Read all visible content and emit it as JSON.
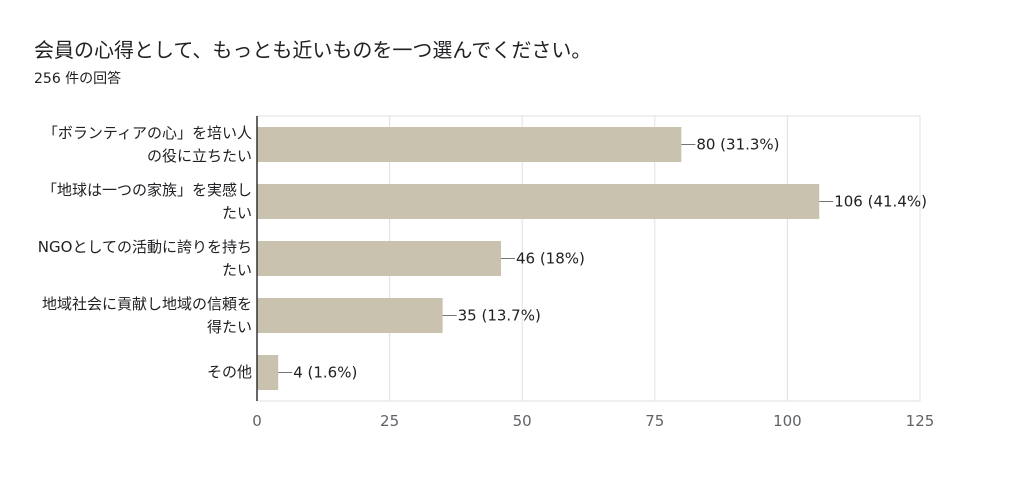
{
  "header": {
    "title": "会員の心得として、もっとも近いものを一つ選んでください。",
    "subtitle": "256 件の回答"
  },
  "colors": {
    "bar": "#c9c2ae",
    "grid": "#e0e0e0",
    "axis": "#333333",
    "text": "#202124"
  },
  "chart_data": {
    "type": "bar",
    "orientation": "horizontal",
    "title": "会員の心得として、もっとも近いものを一つ選んでください。",
    "subtitle": "256 件の回答",
    "categories": [
      [
        "「ボランティアの心」を培い人",
        "の役に立ちたい"
      ],
      [
        "「地球は一つの家族」を実感し",
        "たい"
      ],
      [
        "NGOとしての活動に誇りを持ち",
        "たい"
      ],
      [
        "地域社会に貢献し地域の信頼を",
        "得たい"
      ],
      [
        "その他"
      ]
    ],
    "values": [
      80,
      106,
      46,
      35,
      4
    ],
    "data_labels": [
      "80 (31.3%)",
      "106 (41.4%)",
      "46 (18%)",
      "35 (13.7%)",
      "4 (1.6%)"
    ],
    "xlim": [
      0,
      125
    ],
    "xticks": [
      0,
      25,
      50,
      75,
      100,
      125
    ],
    "xtick_labels": [
      "0",
      "25",
      "50",
      "75",
      "100",
      "125"
    ],
    "grid": true,
    "legend": "none"
  }
}
